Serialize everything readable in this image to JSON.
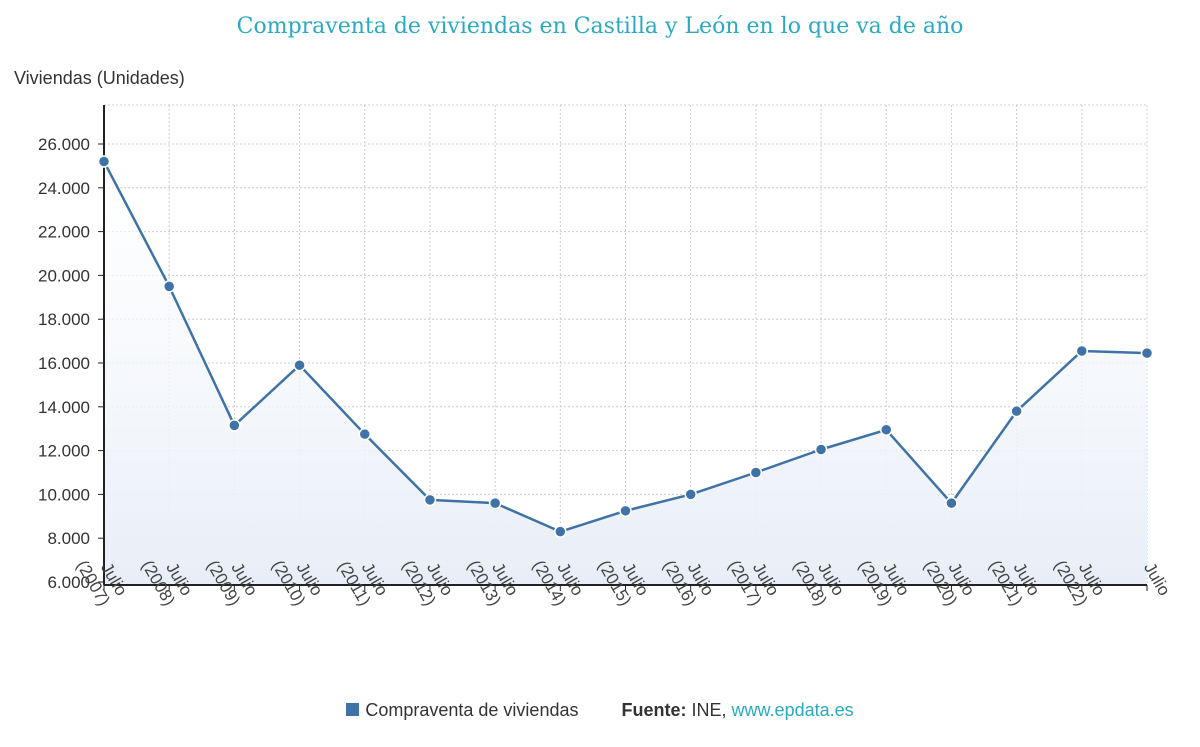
{
  "title": "Compraventa de viviendas en Castilla y León en lo que va de año",
  "colors": {
    "title": "#2aa9c0",
    "series": "#3f72a6",
    "grid": "#cccccc",
    "axis": "#222222",
    "area_top": "#e8eef7",
    "link": "#2aa9c0"
  },
  "chart_data": {
    "type": "line",
    "title": "Compraventa de viviendas en Castilla y León en lo que va de año",
    "ylabel": "Viviendas (Unidades)",
    "xlabel": "",
    "categories": [
      "Julio (2007)",
      "Julio (2008)",
      "Julio (2009)",
      "Julio (2010)",
      "Julio (2011)",
      "Julio (2012)",
      "Julio (2013)",
      "Julio (2014)",
      "Julio (2015)",
      "Julio (2016)",
      "Julio (2017)",
      "Julio (2018)",
      "Julio (2019)",
      "Julio (2020)",
      "Julio (2021)",
      "Julio (2022)",
      "Julio"
    ],
    "series": [
      {
        "name": "Compraventa de viviendas",
        "values": [
          25200,
          19500,
          13150,
          15900,
          12750,
          9750,
          9600,
          8300,
          9250,
          10000,
          11000,
          12050,
          12950,
          9600,
          13800,
          16550,
          16450
        ]
      }
    ],
    "ylim": [
      6000,
      26000
    ],
    "yticks": [
      6000,
      8000,
      10000,
      12000,
      14000,
      16000,
      18000,
      20000,
      22000,
      24000,
      26000
    ],
    "ytick_labels": [
      "6.000",
      "8.000",
      "10.000",
      "12.000",
      "14.000",
      "16.000",
      "18.000",
      "20.000",
      "22.000",
      "24.000",
      "26.000"
    ],
    "grid": true,
    "area_fill": true,
    "legend_position": "bottom-center"
  },
  "legend": {
    "series_label": "Compraventa de viviendas",
    "source_label": "Fuente:",
    "source_text": "INE,",
    "source_link": "www.epdata.es"
  }
}
